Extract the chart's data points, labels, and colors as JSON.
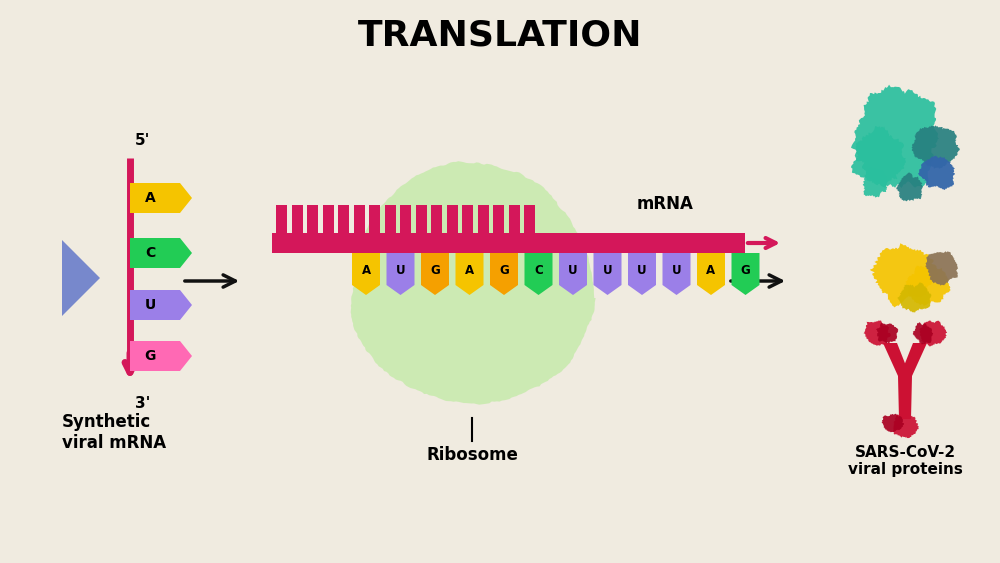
{
  "title": "TRANSLATION",
  "bg_color": "#f0ebe0",
  "title_fontsize": 26,
  "mrna_label": "mRNA",
  "ribosome_label": "Ribosome",
  "synthetic_label": "Synthetic\nviral mRNA",
  "sars_label": "SARS-CoV-2\nviral proteins",
  "nucleotides": [
    "A",
    "U",
    "G",
    "A",
    "G",
    "C",
    "U",
    "U",
    "U",
    "U",
    "A",
    "G"
  ],
  "nucleotide_colors": [
    "#f5c400",
    "#9b7fe8",
    "#f5a000",
    "#f5c400",
    "#f5a000",
    "#22cc55",
    "#9b7fe8",
    "#9b7fe8",
    "#9b7fe8",
    "#9b7fe8",
    "#f5c400",
    "#22cc55"
  ],
  "strand_nuc_letters": [
    "A",
    "C",
    "U",
    "G"
  ],
  "strand_nuc_colors": [
    "#f5c400",
    "#22cc55",
    "#9b7fe8",
    "#ff69b4"
  ],
  "crimson": "#d4175a",
  "arrow_color": "#111111",
  "ribosome_color": "#c5eaaa",
  "five_prime": "5'",
  "three_prime": "3'"
}
